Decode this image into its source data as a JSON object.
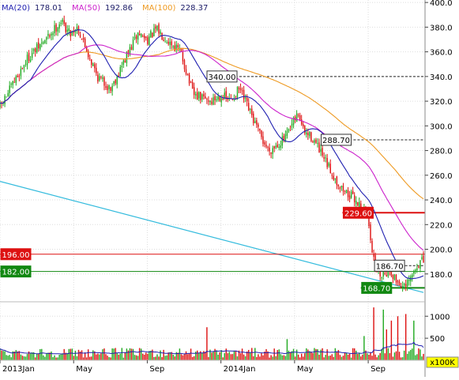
{
  "colors": {
    "ma20": "#1f1fb0",
    "ma50": "#cc22cc",
    "ma100": "#ee9a22",
    "up": "#22aa22",
    "down": "#dd1111",
    "trendline": "#33bbdd",
    "red_level": "#dd1111",
    "green_level": "#118811",
    "grid": "#dddddd"
  },
  "chart_data": [
    {
      "type": "candlestick",
      "legend": [
        {
          "label": "MA(20)",
          "value": "178.01",
          "color_key": "ma20"
        },
        {
          "label": "MA(50)",
          "value": "192.86",
          "color_key": "ma50"
        },
        {
          "label": "MA(100)",
          "value": "228.37",
          "color_key": "ma100"
        }
      ],
      "y_ticks": [
        "400.0",
        "380.0",
        "360.0",
        "340.0",
        "320.0",
        "300.0",
        "280.0",
        "260.0",
        "240.0",
        "220.0",
        "200.0",
        "180.0"
      ],
      "y_tick_values": [
        400,
        380,
        360,
        340,
        320,
        300,
        280,
        260,
        240,
        220,
        200,
        180
      ],
      "ylim": [
        160,
        402
      ],
      "x_labels": [
        "2013Jan",
        "May",
        "Sep",
        "2014Jan",
        "May",
        "Sep"
      ],
      "x_label_months": [
        0,
        4,
        8,
        12,
        16,
        20
      ],
      "months_span": 23,
      "anchor_months": [
        0,
        1.5,
        2.5,
        3.3,
        3.8,
        4.2,
        4.8,
        5.3,
        6,
        7.5,
        8,
        8.5,
        9.8,
        10.5,
        11.5,
        12,
        12.5,
        13,
        14.2,
        14.6,
        15.5,
        16.2,
        16.5,
        17,
        17.5,
        18.5,
        19.3,
        19.6,
        20,
        20.3,
        20.6,
        21.2,
        21.5,
        22,
        22.8
      ],
      "anchor_prices": [
        315,
        355,
        370,
        385,
        375,
        380,
        358,
        340,
        330,
        375,
        370,
        378,
        360,
        325,
        320,
        325,
        320,
        330,
        290,
        280,
        290,
        310,
        295,
        290,
        275,
        250,
        240,
        235,
        225,
        190,
        180,
        183,
        175,
        168,
        190
      ],
      "volume_ticks": [
        "1000",
        "500"
      ],
      "volume_tick_values": [
        1000,
        500
      ],
      "volume_ylim": [
        0,
        1220
      ],
      "volume_unit": "x100K",
      "volume_spikes": [
        {
          "month": 11.2,
          "value": 750
        },
        {
          "month": 15.6,
          "value": 480
        },
        {
          "month": 19.8,
          "value": 550
        },
        {
          "month": 20.3,
          "value": 1200
        },
        {
          "month": 20.8,
          "value": 1150
        },
        {
          "month": 21.0,
          "value": 700
        },
        {
          "month": 21.3,
          "value": 900
        },
        {
          "month": 21.6,
          "value": 1000
        },
        {
          "month": 22.0,
          "value": 1050
        },
        {
          "month": 22.5,
          "value": 900
        }
      ],
      "horizontal_levels": [
        {
          "value": 340.0,
          "label": "340.00",
          "label_month": 11.2,
          "line_from_month": 13.0,
          "style": "dashed",
          "color_key": "grid_dark"
        },
        {
          "value": 288.7,
          "label": "288.70",
          "label_month": 17.4,
          "line_from_month": 19.2,
          "style": "dashed",
          "color_key": "grid_dark"
        },
        {
          "value": 229.6,
          "label": "229.60",
          "label_month": 18.6,
          "line_from_month": 18.6,
          "style": "solid-thick",
          "color_key": "red_level"
        },
        {
          "value": 196.0,
          "label": "196.00",
          "label_month": 0,
          "line_from_month": 0,
          "style": "solid",
          "color_key": "red_level"
        },
        {
          "value": 186.7,
          "label": "186.70",
          "label_month": 20.3,
          "line_from_month": 22.0,
          "style": "dashed",
          "color_key": "grid_dark"
        },
        {
          "value": 182.0,
          "label": "182.00",
          "label_month": 0,
          "line_from_month": 0,
          "style": "solid",
          "color_key": "green_level"
        },
        {
          "value": 168.7,
          "label": "168.70",
          "label_month": 19.6,
          "line_from_month": 19.6,
          "style": "solid-thick",
          "color_key": "green_level"
        }
      ],
      "trendline": {
        "from": {
          "month": 0,
          "value": 255
        },
        "to": {
          "month": 23,
          "value": 165
        }
      }
    }
  ]
}
